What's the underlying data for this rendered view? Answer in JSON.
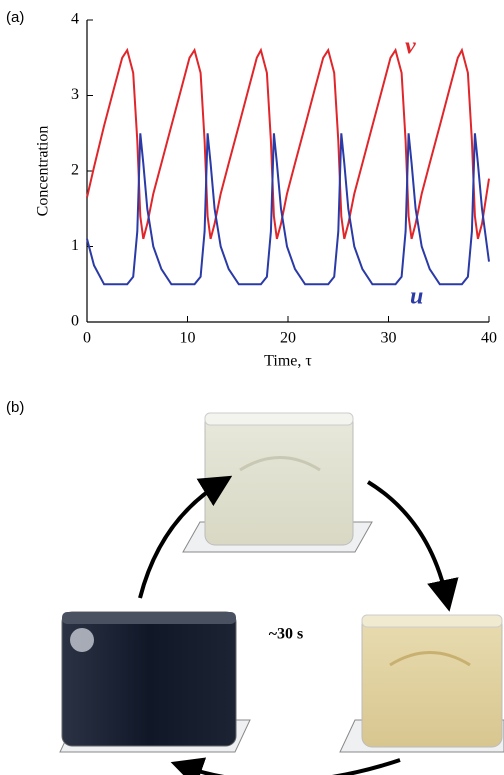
{
  "panel_labels": [
    "(a)",
    "(b)"
  ],
  "cycle_label": "~30 s",
  "chart_data": {
    "type": "line",
    "xlabel": "Time, τ",
    "ylabel": "Concentration",
    "xlim": [
      0,
      40
    ],
    "ylim": [
      0,
      4
    ],
    "xticks": [
      0,
      10,
      20,
      30,
      40
    ],
    "yticks": [
      0,
      1,
      2,
      3,
      4
    ],
    "x": [
      0,
      0.7,
      1.7,
      2.7,
      3.5,
      4.0,
      4.6,
      5.0,
      5.3,
      5.6,
      6.0,
      6.6,
      7.4,
      8.4,
      9.4,
      10.2,
      10.7,
      11.3,
      11.7,
      12.0,
      12.3,
      12.7,
      13.3,
      14.1,
      15.1,
      16.1,
      16.9,
      17.3,
      17.9,
      18.3,
      18.6,
      18.9,
      19.3,
      19.9,
      20.7,
      21.7,
      22.7,
      23.5,
      24.0,
      24.6,
      25.0,
      25.3,
      25.6,
      26.0,
      26.6,
      27.4,
      28.4,
      29.4,
      30.2,
      30.7,
      31.3,
      31.7,
      32.0,
      32.3,
      32.7,
      33.3,
      34.1,
      35.1,
      36.1,
      36.9,
      37.3,
      37.9,
      38.3,
      38.6,
      38.9,
      39.3,
      40.0
    ],
    "series": [
      {
        "name": "v",
        "color": "#e0262a",
        "values": [
          1.65,
          2.05,
          2.6,
          3.1,
          3.5,
          3.6,
          3.3,
          2.4,
          1.4,
          1.1,
          1.3,
          1.7,
          2.1,
          2.6,
          3.1,
          3.5,
          3.6,
          3.3,
          2.4,
          1.4,
          1.1,
          1.3,
          1.7,
          2.1,
          2.6,
          3.1,
          3.5,
          3.6,
          3.3,
          2.4,
          1.4,
          1.1,
          1.3,
          1.7,
          2.1,
          2.6,
          3.1,
          3.5,
          3.6,
          3.3,
          2.4,
          1.4,
          1.1,
          1.3,
          1.7,
          2.1,
          2.6,
          3.1,
          3.5,
          3.6,
          3.3,
          2.4,
          1.4,
          1.1,
          1.3,
          1.7,
          2.1,
          2.6,
          3.1,
          3.5,
          3.6,
          3.3,
          2.4,
          1.4,
          1.1,
          1.3,
          1.9
        ]
      },
      {
        "name": "u",
        "color": "#2a3aa6",
        "values": [
          1.1,
          0.75,
          0.5,
          0.5,
          0.5,
          0.5,
          0.6,
          1.2,
          2.5,
          2.1,
          1.5,
          1.0,
          0.7,
          0.5,
          0.5,
          0.5,
          0.5,
          0.6,
          1.2,
          2.5,
          2.1,
          1.5,
          1.0,
          0.7,
          0.5,
          0.5,
          0.5,
          0.5,
          0.6,
          1.2,
          2.5,
          2.1,
          1.5,
          1.0,
          0.7,
          0.5,
          0.5,
          0.5,
          0.5,
          0.6,
          1.2,
          2.5,
          2.1,
          1.5,
          1.0,
          0.7,
          0.5,
          0.5,
          0.5,
          0.5,
          0.6,
          1.2,
          2.5,
          2.1,
          1.5,
          1.0,
          0.7,
          0.5,
          0.5,
          0.5,
          0.5,
          0.6,
          1.2,
          2.5,
          2.1,
          1.5,
          0.8
        ]
      }
    ]
  }
}
